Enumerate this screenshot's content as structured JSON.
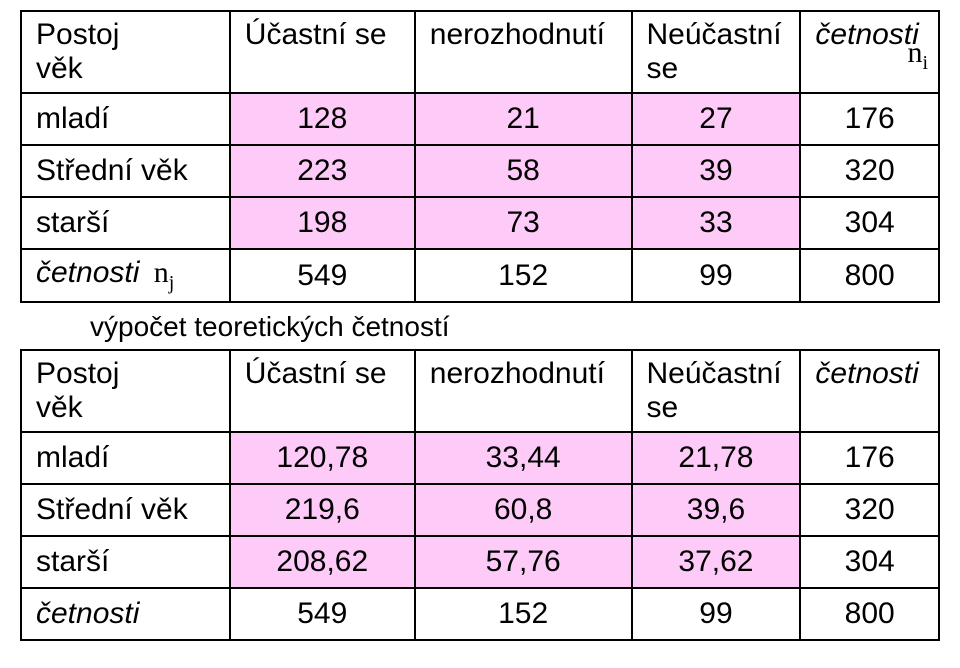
{
  "table1": {
    "header": {
      "c1a": "Postoj",
      "c1b": "věk",
      "c2": "Účastní se",
      "c3": "nerozhodnutí",
      "c4a": "Neúčastní",
      "c4b": "se",
      "c5": "četnosti",
      "ni": "n",
      "ni_sub": "i"
    },
    "rows": [
      {
        "label": "mladí",
        "v1": "128",
        "v2": "21",
        "v3": "27",
        "v4": "176",
        "pink": true
      },
      {
        "label": "Střední věk",
        "v1": "223",
        "v2": "58",
        "v3": "39",
        "v4": "320",
        "pink": true
      },
      {
        "label": "starší",
        "v1": "198",
        "v2": "73",
        "v3": "33",
        "v4": "304",
        "pink": true
      }
    ],
    "footer": {
      "label": "četnosti",
      "nj": "n",
      "nj_sub": "j",
      "v1": "549",
      "v2": "152",
      "v3": "99",
      "v4": "800"
    }
  },
  "caption": "výpočet teoretických četností",
  "table2": {
    "header": {
      "c1a": "Postoj",
      "c1b": "věk",
      "c2": "Účastní se",
      "c3": "nerozhodnutí",
      "c4a": "Neúčastní",
      "c4b": "se",
      "c5": "četnosti"
    },
    "rows": [
      {
        "label": "mladí",
        "v1": "120,78",
        "v2": "33,44",
        "v3": "21,78",
        "v4": "176",
        "pink": true
      },
      {
        "label": "Střední věk",
        "v1": "219,6",
        "v2": "60,8",
        "v3": "39,6",
        "v4": "320",
        "pink": true
      },
      {
        "label": "starší",
        "v1": "208,62",
        "v2": "57,76",
        "v3": "37,62",
        "v4": "304",
        "pink": true
      }
    ],
    "footer": {
      "label": "četnosti",
      "v1": "549",
      "v2": "152",
      "v3": "99",
      "v4": "800"
    }
  },
  "colors": {
    "pink": "#fecaf8",
    "border": "#000000",
    "bg": "#ffffff"
  }
}
